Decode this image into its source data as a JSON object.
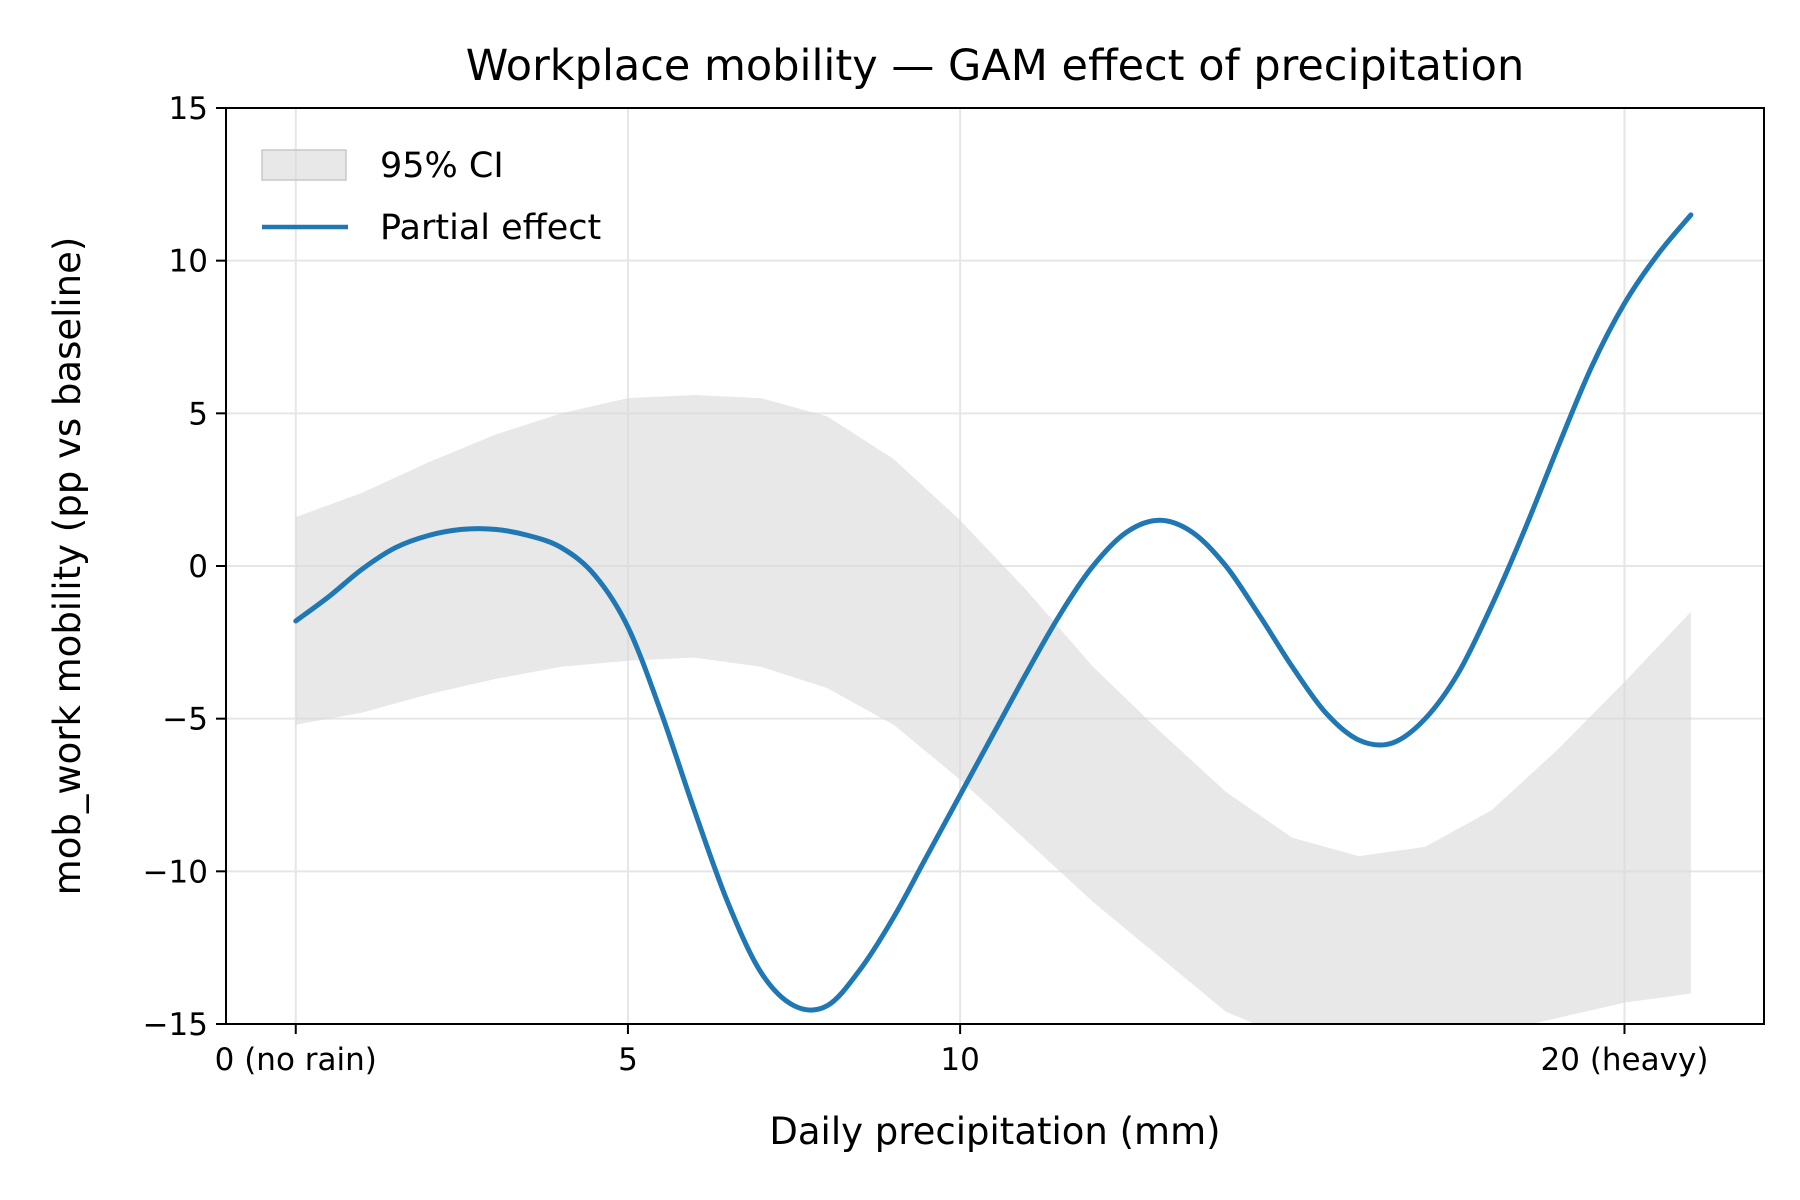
{
  "chart_data": {
    "type": "line",
    "title": "Workplace mobility — GAM effect of precipitation",
    "xlabel": "Daily precipitation (mm)",
    "ylabel": "mob_work mobility (pp vs baseline)",
    "xlim": [
      -1.05,
      22.1
    ],
    "ylim": [
      -15,
      15
    ],
    "xticks": [
      {
        "value": 0,
        "label": "0 (no rain)"
      },
      {
        "value": 5,
        "label": "5"
      },
      {
        "value": 10,
        "label": "10"
      },
      {
        "value": 20,
        "label": "20 (heavy)"
      }
    ],
    "yticks": [
      {
        "value": -15,
        "label": "−15"
      },
      {
        "value": -10,
        "label": "−10"
      },
      {
        "value": -5,
        "label": "−5"
      },
      {
        "value": 0,
        "label": "0"
      },
      {
        "value": 5,
        "label": "5"
      },
      {
        "value": 10,
        "label": "10"
      },
      {
        "value": 15,
        "label": "15"
      }
    ],
    "grid": true,
    "legend_position": "upper-left",
    "legend": [
      {
        "label": "95% CI",
        "kind": "band"
      },
      {
        "label": "Partial effect",
        "kind": "line"
      }
    ],
    "series": [
      {
        "name": "Partial effect",
        "color": "#1f77b4",
        "x": [
          0,
          0.5,
          1,
          1.5,
          2,
          2.5,
          3,
          3.5,
          4,
          4.5,
          5,
          5.5,
          6,
          6.5,
          7,
          7.5,
          8,
          8.5,
          9,
          9.5,
          10,
          10.5,
          11,
          11.5,
          12,
          12.5,
          13,
          13.5,
          14,
          14.5,
          15,
          15.5,
          16,
          16.5,
          17,
          17.5,
          18,
          18.5,
          19,
          19.5,
          20,
          20.5,
          21
        ],
        "y": [
          -1.8,
          -1.0,
          -0.1,
          0.6,
          1.0,
          1.2,
          1.2,
          1.0,
          0.6,
          -0.3,
          -2.0,
          -4.8,
          -8.0,
          -11.0,
          -13.3,
          -14.4,
          -14.4,
          -13.2,
          -11.5,
          -9.5,
          -7.5,
          -5.5,
          -3.5,
          -1.6,
          0.0,
          1.1,
          1.5,
          1.1,
          0.0,
          -1.6,
          -3.3,
          -4.8,
          -5.7,
          -5.8,
          -5.0,
          -3.5,
          -1.3,
          1.2,
          3.9,
          6.5,
          8.6,
          10.2,
          11.5
        ]
      }
    ],
    "ci_band": {
      "name": "95% CI",
      "color": "#d9d9d9",
      "x": [
        0,
        1,
        2,
        3,
        4,
        5,
        6,
        7,
        8,
        9,
        10,
        11,
        12,
        13,
        14,
        15,
        16,
        17,
        18,
        19,
        20,
        21
      ],
      "lower": [
        -5.2,
        -4.8,
        -4.2,
        -3.7,
        -3.3,
        -3.1,
        -3.0,
        -3.3,
        -4.0,
        -5.2,
        -7.0,
        -9.0,
        -11.0,
        -12.8,
        -14.6,
        -15.5,
        -15.8,
        -15.6,
        -15.3,
        -14.8,
        -14.3,
        -14.0
      ],
      "upper": [
        1.6,
        2.4,
        3.4,
        4.3,
        5.0,
        5.5,
        5.6,
        5.5,
        4.9,
        3.5,
        1.5,
        -0.8,
        -3.3,
        -5.4,
        -7.4,
        -8.9,
        -9.5,
        -9.2,
        -8.0,
        -6.0,
        -3.8,
        -1.5
      ]
    }
  }
}
